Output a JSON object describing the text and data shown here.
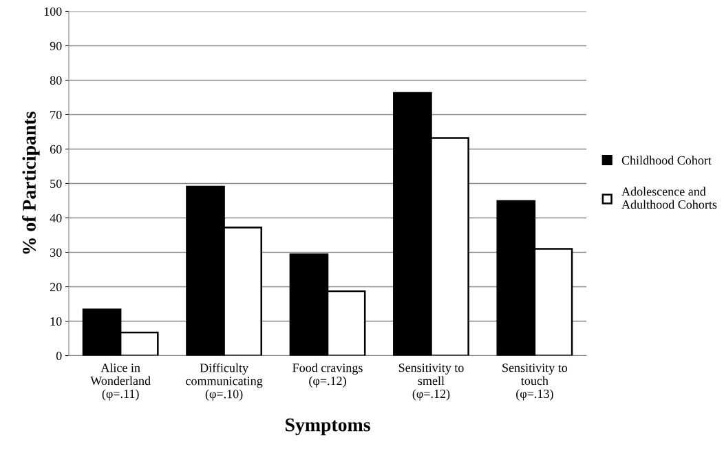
{
  "chart_data": {
    "type": "bar",
    "xlabel": "Symptoms",
    "ylabel": "% of Participants",
    "categories": [
      "Alice in\nWonderland\n(φ=.11)",
      "Difficulty\ncommunicating\n(φ=.10)",
      "Food cravings\n(φ=.12)",
      "Sensitivity to\nsmell\n(φ=.12)",
      "Sensitivity to\ntouch\n(φ=.13)"
    ],
    "series": [
      {
        "name": "Childhood Cohort",
        "color": "#000000",
        "values": [
          13.4,
          49.1,
          29.4,
          76.3,
          44.9
        ]
      },
      {
        "name": "Adolescence and\nAdulthood Cohorts",
        "color": "#ffffff",
        "values": [
          6.7,
          37.2,
          18.7,
          63.2,
          31.0
        ]
      }
    ],
    "ylim": [
      0,
      100
    ],
    "yticks": [
      0,
      10,
      20,
      30,
      40,
      50,
      60,
      70,
      80,
      90,
      100
    ],
    "grid": "y",
    "legend": "right"
  }
}
